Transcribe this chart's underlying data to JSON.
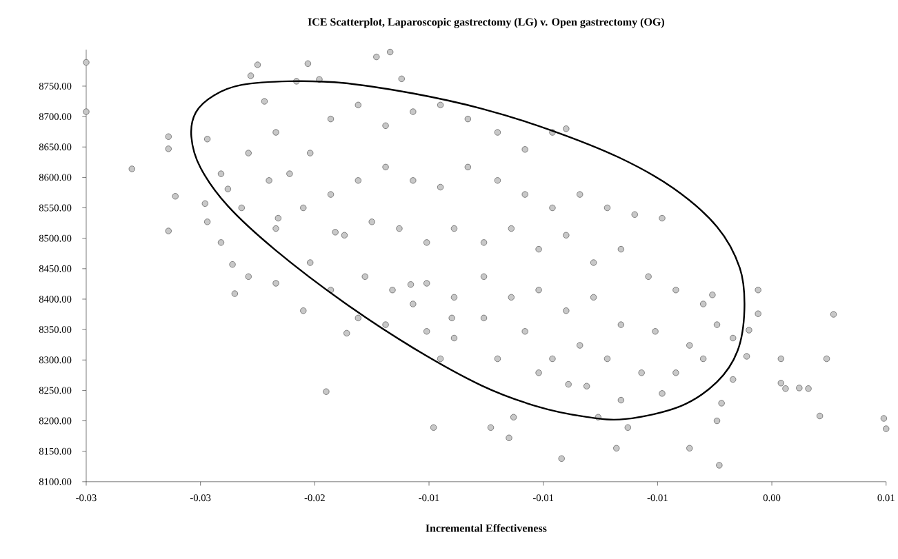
{
  "chart_data": {
    "type": "scatter",
    "title": "ICE Scatterplot, Laparoscopic gastrectomy (LG) v. Open gastrectomy (OG)",
    "xlabel": "Incremental Effectiveness",
    "xlim": [
      -0.03,
      0.005
    ],
    "ylim": [
      8100,
      8810
    ],
    "marker": "circle",
    "xticks": [
      {
        "value": -0.03,
        "label": "-0.03"
      },
      {
        "value": -0.025,
        "label": "-0.03"
      },
      {
        "value": -0.02,
        "label": "-0.02"
      },
      {
        "value": -0.015,
        "label": "-0.01"
      },
      {
        "value": -0.01,
        "label": "-0.01"
      },
      {
        "value": -0.005,
        "label": "-0.01"
      },
      {
        "value": 0,
        "label": "0.00"
      },
      {
        "value": 0.005,
        "label": "0.01"
      }
    ],
    "yticks": [
      {
        "value": 8100,
        "label": "8100.00"
      },
      {
        "value": 8150,
        "label": "8150.00"
      },
      {
        "value": 8200,
        "label": "8200.00"
      },
      {
        "value": 8250,
        "label": "8250.00"
      },
      {
        "value": 8300,
        "label": "8300.00"
      },
      {
        "value": 8350,
        "label": "8350.00"
      },
      {
        "value": 8400,
        "label": "8400.00"
      },
      {
        "value": 8450,
        "label": "8450.00"
      },
      {
        "value": 8500,
        "label": "8500.00"
      },
      {
        "value": 8550,
        "label": "8550.00"
      },
      {
        "value": 8600,
        "label": "8600.00"
      },
      {
        "value": 8650,
        "label": "8650.00"
      },
      {
        "value": 8700,
        "label": "8700.00"
      },
      {
        "value": 8750,
        "label": "8750.00"
      }
    ],
    "series": [
      {
        "color": "#c8c8c8",
        "x": [
          -0.03,
          -0.03,
          -0.028,
          -0.0264,
          -0.0264,
          -0.0261,
          -0.0264,
          -0.0248,
          -0.0236,
          -0.0235,
          -0.0238,
          -0.0228,
          -0.0225,
          -0.0222,
          -0.0216,
          -0.0208,
          -0.0203,
          -0.0198,
          -0.0191,
          -0.0186,
          -0.0173,
          -0.0167,
          -0.0162,
          -0.0158,
          -0.0195,
          -0.0148,
          -0.014,
          -0.0123,
          -0.0115,
          -0.0113,
          -0.0092,
          -0.0089,
          -0.0068,
          -0.0076,
          -0.0063,
          -0.0036,
          -0.0023,
          -0.0024,
          -0.0022,
          -0.0017,
          -0.0006,
          0.0004,
          0.0004,
          0.0006,
          0.0012,
          0.0016,
          0.0021,
          0.0024,
          0.0027,
          0.0049,
          0.005,
          -0.0026,
          -0.0017,
          -0.0006,
          -0.001,
          -0.0011,
          -0.0247,
          -0.0241,
          -0.0229,
          -0.0217,
          -0.0232,
          -0.022,
          -0.0211,
          -0.0202,
          -0.0193,
          -0.0181,
          -0.0169,
          -0.0157,
          -0.0145,
          -0.0133,
          -0.012,
          -0.0108,
          -0.0096,
          -0.009,
          -0.0217,
          -0.0205,
          -0.0193,
          -0.0181,
          -0.0169,
          -0.0157,
          -0.0145,
          -0.0133,
          -0.012,
          -0.0108,
          -0.0096,
          -0.0084,
          -0.0072,
          -0.006,
          -0.0048,
          -0.0202,
          -0.0187,
          -0.0175,
          -0.0163,
          -0.0151,
          -0.0139,
          -0.0126,
          -0.0114,
          -0.0102,
          -0.009,
          -0.0078,
          -0.0066,
          -0.0054,
          -0.0042,
          -0.003,
          -0.0193,
          -0.0178,
          -0.0166,
          -0.0151,
          -0.0139,
          -0.0126,
          -0.0114,
          -0.0102,
          -0.009,
          -0.0078,
          -0.0066,
          -0.0051,
          -0.0036,
          -0.0024,
          -0.0169,
          -0.0151,
          -0.0139,
          -0.0126,
          -0.0108,
          -0.0096,
          -0.0084,
          -0.0072,
          -0.0057,
          -0.0042,
          -0.003,
          -0.0145,
          -0.012,
          -0.0102,
          -0.0081,
          -0.0066,
          -0.0048,
          -0.0157,
          -0.0181,
          -0.0205,
          -0.0217,
          -0.0229,
          -0.0241,
          -0.0247
        ],
        "values": [
          8789,
          8708,
          8614,
          8667,
          8647,
          8569,
          8512,
          8557,
          8457,
          8409,
          8581,
          8767,
          8785,
          8725,
          8533,
          8758,
          8787,
          8761,
          8510,
          8344,
          8798,
          8806,
          8762,
          8424,
          8248,
          8189,
          8369,
          8189,
          8172,
          8206,
          8138,
          8260,
          8155,
          8206,
          8189,
          8155,
          8127,
          8200,
          8229,
          8268,
          8415,
          8302,
          8262,
          8253,
          8254,
          8253,
          8208,
          8302,
          8375,
          8204,
          8187,
          8407,
          8336,
          8376,
          8349,
          8306,
          8663,
          8606,
          8640,
          8674,
          8550,
          8595,
          8606,
          8640,
          8696,
          8719,
          8685,
          8708,
          8719,
          8696,
          8674,
          8646,
          8674,
          8680,
          8516,
          8550,
          8572,
          8595,
          8617,
          8595,
          8584,
          8617,
          8595,
          8572,
          8550,
          8572,
          8550,
          8539,
          8533,
          8460,
          8505,
          8527,
          8516,
          8493,
          8516,
          8493,
          8516,
          8482,
          8505,
          8460,
          8482,
          8437,
          8415,
          8392,
          8415,
          8437,
          8415,
          8426,
          8403,
          8437,
          8403,
          8415,
          8381,
          8403,
          8358,
          8347,
          8324,
          8358,
          8358,
          8347,
          8336,
          8369,
          8347,
          8302,
          8324,
          8302,
          8279,
          8279,
          8302,
          8302,
          8302,
          8279,
          8257,
          8234,
          8245,
          8392,
          8369,
          8381,
          8426,
          8437,
          8493,
          8527
        ]
      }
    ]
  }
}
